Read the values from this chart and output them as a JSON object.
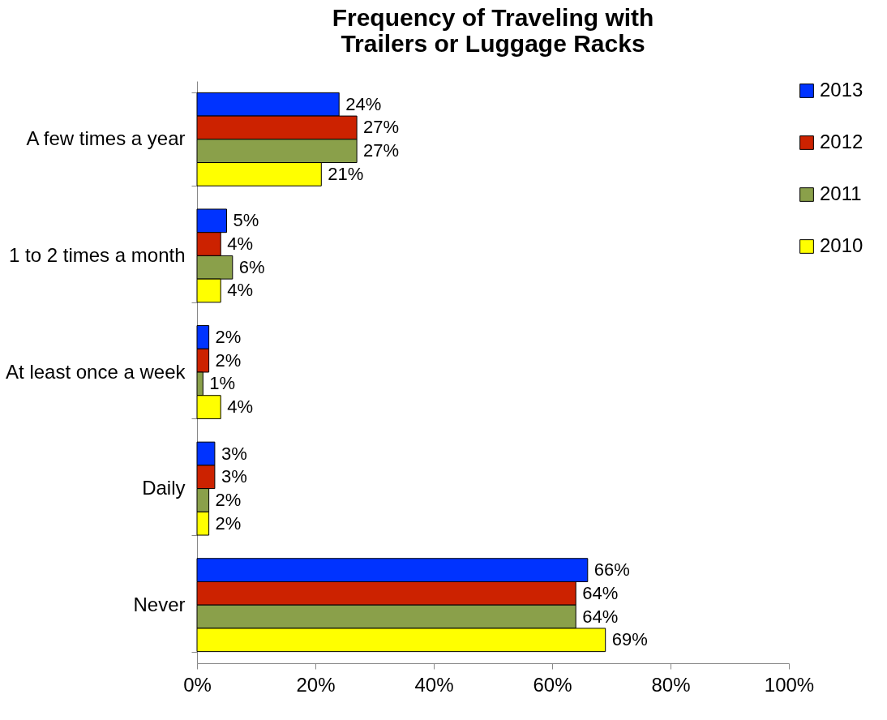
{
  "chart_data": {
    "type": "bar",
    "orientation": "horizontal",
    "title": "Frequency of Traveling with Trailers or Luggage Racks",
    "categories": [
      "A few times a year",
      "1 to 2 times a month",
      "At least once a week",
      "Daily",
      "Never"
    ],
    "series": [
      {
        "name": "2013",
        "color": "#0033ff",
        "values": [
          24,
          5,
          2,
          3,
          66
        ],
        "value_labels": [
          "24%",
          "5%",
          "2%",
          "3%",
          "66%"
        ]
      },
      {
        "name": "2012",
        "color": "#cc2200",
        "values": [
          27,
          4,
          2,
          3,
          64
        ],
        "value_labels": [
          "27%",
          "4%",
          "2%",
          "3%",
          "64%"
        ]
      },
      {
        "name": "2011",
        "color": "#8aa04a",
        "values": [
          27,
          6,
          1,
          2,
          64
        ],
        "value_labels": [
          "27%",
          "6%",
          "1%",
          "2%",
          "64%"
        ]
      },
      {
        "name": "2010",
        "color": "#ffff00",
        "values": [
          21,
          4,
          4,
          2,
          69
        ],
        "value_labels": [
          "21%",
          "4%",
          "4%",
          "2%",
          "69%"
        ]
      }
    ],
    "xlim": [
      0,
      100
    ],
    "xticks": [
      {
        "value": 0,
        "label": "0%"
      },
      {
        "value": 20,
        "label": "20%"
      },
      {
        "value": 40,
        "label": "40%"
      },
      {
        "value": 60,
        "label": "60%"
      },
      {
        "value": 80,
        "label": "80%"
      },
      {
        "value": 100,
        "label": "100%"
      }
    ],
    "grid": false,
    "legend": "right"
  }
}
